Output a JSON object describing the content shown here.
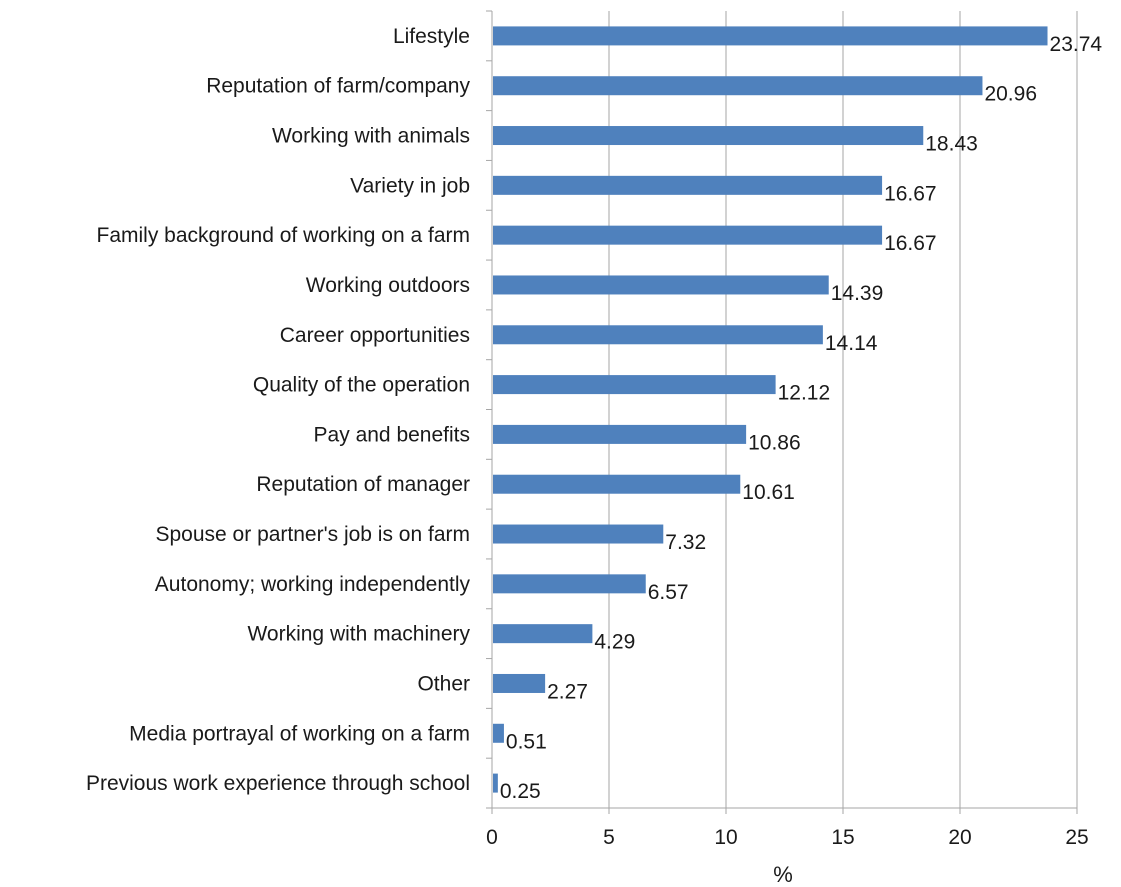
{
  "chart_data": {
    "type": "bar",
    "orientation": "horizontal",
    "title": "",
    "xlabel": "%",
    "ylabel": "",
    "xlim": [
      0,
      25
    ],
    "xticks": [
      0,
      5,
      10,
      15,
      20,
      25
    ],
    "grid": true,
    "legend": "none",
    "bar_color": "#4F81BD",
    "gridline_color": "#a6a6a6",
    "categories": [
      "Lifestyle",
      "Reputation of farm/company",
      "Working with animals",
      "Variety in job",
      "Family background of working on a farm",
      "Working outdoors",
      "Career opportunities",
      "Quality of the operation",
      "Pay and benefits",
      "Reputation of manager",
      "Spouse or partner's job is on farm",
      "Autonomy; working independently",
      "Working with machinery",
      "Other",
      "Media portrayal of working on a farm",
      "Previous work experience through school"
    ],
    "values": [
      23.74,
      20.96,
      18.43,
      16.67,
      16.67,
      14.39,
      14.14,
      12.12,
      10.86,
      10.61,
      7.32,
      6.57,
      4.29,
      2.27,
      0.51,
      0.25
    ],
    "value_labels": [
      "23.74",
      "20.96",
      "18.43",
      "16.67",
      "16.67",
      "14.39",
      "14.14",
      "12.12",
      "10.86",
      "10.61",
      "7.32",
      "6.57",
      "4.29",
      "2.27",
      "0.51",
      "0.25"
    ]
  }
}
